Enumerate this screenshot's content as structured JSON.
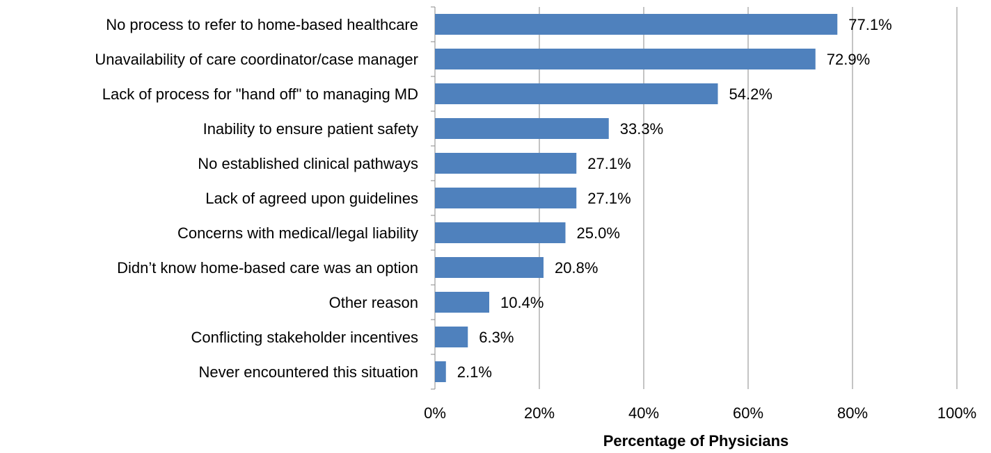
{
  "chart_data": {
    "type": "barh",
    "xlabel": "Percentage of Physicians",
    "categories": [
      "No process to refer to home-based healthcare",
      "Unavailability of care coordinator/case manager",
      "Lack of process for \"hand off\" to managing MD",
      "Inability to ensure patient safety",
      "No established clinical pathways",
      "Lack of agreed upon guidelines",
      "Concerns with medical/legal liability",
      "Didn’t know home-based care was an option",
      "Other reason",
      "Conflicting stakeholder incentives",
      "Never encountered this situation"
    ],
    "values": [
      77.1,
      72.9,
      54.2,
      33.3,
      27.1,
      27.1,
      25.0,
      20.8,
      10.4,
      6.3,
      2.1
    ],
    "value_labels": [
      "77.1%",
      "72.9%",
      "54.2%",
      "33.3%",
      "27.1%",
      "27.1%",
      "25.0%",
      "20.8%",
      "10.4%",
      "6.3%",
      "2.1%"
    ],
    "color": "#4f81bd",
    "xlim": [
      0,
      100
    ],
    "xticks": [
      {
        "value": 0,
        "label": "0%"
      },
      {
        "value": 20,
        "label": "20%"
      },
      {
        "value": 40,
        "label": "40%"
      },
      {
        "value": 60,
        "label": "60%"
      },
      {
        "value": 80,
        "label": "80%"
      },
      {
        "value": 100,
        "label": "100%"
      }
    ],
    "grid": true
  }
}
